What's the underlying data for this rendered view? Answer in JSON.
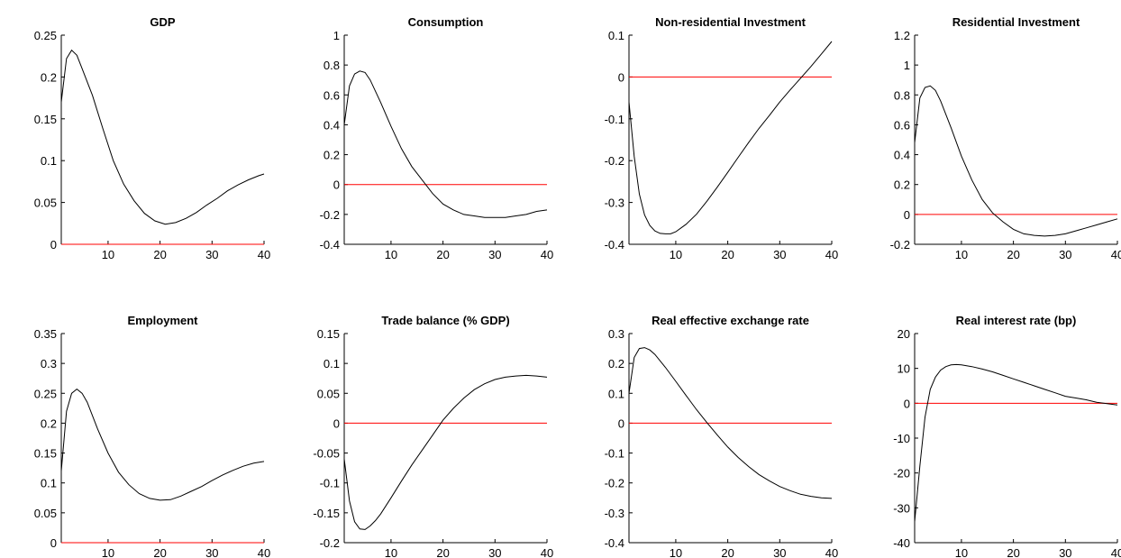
{
  "chart_data": [
    {
      "type": "line",
      "title": "GDP",
      "xlim": [
        1,
        40
      ],
      "ylim": [
        0,
        0.25
      ],
      "yticks": [
        0,
        0.05,
        0.1,
        0.15,
        0.2,
        0.25
      ],
      "ytick_labels": [
        "0",
        "0.05",
        "0.1",
        "0.15",
        "0.2",
        "0.25"
      ],
      "xticks": [
        10,
        20,
        30,
        40
      ],
      "xtick_labels": [
        "10",
        "20",
        "30",
        "40"
      ],
      "reference_line": 0,
      "line_color": "#000000",
      "reference_color": "#ff0000",
      "series": [
        {
          "x": [
            1,
            2,
            3,
            4,
            5,
            7,
            9,
            11,
            13,
            15,
            17,
            19,
            21,
            23,
            25,
            27,
            29,
            31,
            33,
            35,
            37,
            39,
            40
          ],
          "values": [
            0.17,
            0.222,
            0.232,
            0.226,
            0.21,
            0.178,
            0.138,
            0.1,
            0.072,
            0.052,
            0.037,
            0.028,
            0.024,
            0.026,
            0.031,
            0.038,
            0.047,
            0.055,
            0.064,
            0.071,
            0.077,
            0.082,
            0.084
          ]
        }
      ]
    },
    {
      "type": "line",
      "title": "Consumption",
      "xlim": [
        1,
        40
      ],
      "ylim": [
        -0.4,
        1
      ],
      "yticks": [
        -0.4,
        -0.2,
        0,
        0.2,
        0.4,
        0.6,
        0.8,
        1
      ],
      "ytick_labels": [
        "-0.4",
        "-0.2",
        "0",
        "0.2",
        "0.4",
        "0.6",
        "0.8",
        "1"
      ],
      "xticks": [
        10,
        20,
        30,
        40
      ],
      "xtick_labels": [
        "10",
        "20",
        "30",
        "40"
      ],
      "reference_line": 0,
      "line_color": "#000000",
      "reference_color": "#ff0000",
      "series": [
        {
          "x": [
            1,
            2,
            3,
            4,
            5,
            6,
            8,
            10,
            12,
            14,
            16,
            18,
            20,
            22,
            24,
            26,
            28,
            30,
            32,
            34,
            36,
            38,
            40
          ],
          "values": [
            0.4,
            0.66,
            0.74,
            0.76,
            0.75,
            0.7,
            0.55,
            0.39,
            0.24,
            0.12,
            0.03,
            -0.06,
            -0.13,
            -0.17,
            -0.2,
            -0.21,
            -0.22,
            -0.22,
            -0.22,
            -0.21,
            -0.2,
            -0.18,
            -0.17
          ]
        }
      ]
    },
    {
      "type": "line",
      "title": "Non-residential Investment",
      "xlim": [
        1,
        40
      ],
      "ylim": [
        -0.4,
        0.1
      ],
      "yticks": [
        -0.4,
        -0.3,
        -0.2,
        -0.1,
        0,
        0.1
      ],
      "ytick_labels": [
        "-0.4",
        "-0.3",
        "-0.2",
        "-0.1",
        "0",
        "0.1"
      ],
      "xticks": [
        10,
        20,
        30,
        40
      ],
      "xtick_labels": [
        "10",
        "20",
        "30",
        "40"
      ],
      "reference_line": 0,
      "line_color": "#000000",
      "reference_color": "#ff0000",
      "series": [
        {
          "x": [
            1,
            2,
            3,
            4,
            5,
            6,
            7,
            8,
            9,
            10,
            12,
            14,
            16,
            18,
            20,
            22,
            24,
            26,
            28,
            30,
            32,
            34,
            36,
            38,
            40
          ],
          "values": [
            -0.06,
            -0.19,
            -0.28,
            -0.33,
            -0.355,
            -0.368,
            -0.374,
            -0.375,
            -0.375,
            -0.37,
            -0.352,
            -0.328,
            -0.297,
            -0.263,
            -0.228,
            -0.192,
            -0.157,
            -0.123,
            -0.092,
            -0.06,
            -0.031,
            -0.003,
            0.025,
            0.055,
            0.085
          ]
        }
      ]
    },
    {
      "type": "line",
      "title": "Residential Investment",
      "xlim": [
        1,
        40
      ],
      "ylim": [
        -0.2,
        1.2
      ],
      "yticks": [
        -0.2,
        0,
        0.2,
        0.4,
        0.6,
        0.8,
        1,
        1.2
      ],
      "ytick_labels": [
        "-0.2",
        "0",
        "0.2",
        "0.4",
        "0.6",
        "0.8",
        "1",
        "1.2"
      ],
      "xticks": [
        10,
        20,
        30,
        40
      ],
      "xtick_labels": [
        "10",
        "20",
        "30",
        "40"
      ],
      "reference_line": 0,
      "line_color": "#000000",
      "reference_color": "#ff0000",
      "series": [
        {
          "x": [
            1,
            2,
            3,
            4,
            5,
            6,
            8,
            10,
            12,
            14,
            16,
            18,
            20,
            22,
            24,
            26,
            28,
            30,
            32,
            34,
            36,
            38,
            40
          ],
          "values": [
            0.48,
            0.78,
            0.85,
            0.86,
            0.83,
            0.76,
            0.58,
            0.39,
            0.23,
            0.1,
            0.01,
            -0.05,
            -0.1,
            -0.13,
            -0.14,
            -0.145,
            -0.14,
            -0.13,
            -0.11,
            -0.09,
            -0.07,
            -0.05,
            -0.03
          ]
        }
      ]
    },
    {
      "type": "line",
      "title": "Employment",
      "xlim": [
        1,
        40
      ],
      "ylim": [
        0,
        0.35
      ],
      "yticks": [
        0,
        0.05,
        0.1,
        0.15,
        0.2,
        0.25,
        0.3,
        0.35
      ],
      "ytick_labels": [
        "0",
        "0.05",
        "0.1",
        "0.15",
        "0.2",
        "0.25",
        "0.3",
        "0.35"
      ],
      "xticks": [
        10,
        20,
        30,
        40
      ],
      "xtick_labels": [
        "10",
        "20",
        "30",
        "40"
      ],
      "reference_line": 0,
      "line_color": "#000000",
      "reference_color": "#ff0000",
      "series": [
        {
          "x": [
            1,
            2,
            3,
            4,
            5,
            6,
            8,
            10,
            12,
            14,
            16,
            18,
            20,
            22,
            24,
            26,
            28,
            30,
            32,
            34,
            36,
            38,
            40
          ],
          "values": [
            0.12,
            0.22,
            0.25,
            0.257,
            0.25,
            0.235,
            0.19,
            0.15,
            0.118,
            0.097,
            0.082,
            0.074,
            0.071,
            0.072,
            0.078,
            0.086,
            0.094,
            0.104,
            0.113,
            0.121,
            0.128,
            0.133,
            0.136
          ]
        }
      ]
    },
    {
      "type": "line",
      "title": "Trade balance (% GDP)",
      "xlim": [
        1,
        40
      ],
      "ylim": [
        -0.2,
        0.15
      ],
      "yticks": [
        -0.2,
        -0.15,
        -0.1,
        -0.05,
        0,
        0.05,
        0.1,
        0.15
      ],
      "ytick_labels": [
        "-0.2",
        "-0.15",
        "-0.1",
        "-0.05",
        "0",
        "0.05",
        "0.1",
        "0.15"
      ],
      "xticks": [
        10,
        20,
        30,
        40
      ],
      "xtick_labels": [
        "10",
        "20",
        "30",
        "40"
      ],
      "reference_line": 0,
      "line_color": "#000000",
      "reference_color": "#ff0000",
      "series": [
        {
          "x": [
            1,
            2,
            3,
            4,
            5,
            6,
            7,
            8,
            10,
            12,
            14,
            16,
            18,
            20,
            22,
            24,
            26,
            28,
            30,
            32,
            34,
            36,
            38,
            40
          ],
          "values": [
            -0.06,
            -0.13,
            -0.165,
            -0.177,
            -0.178,
            -0.172,
            -0.163,
            -0.152,
            -0.125,
            -0.097,
            -0.07,
            -0.045,
            -0.02,
            0.005,
            0.025,
            0.042,
            0.056,
            0.066,
            0.073,
            0.077,
            0.079,
            0.08,
            0.079,
            0.077
          ]
        }
      ]
    },
    {
      "type": "line",
      "title": "Real effective exchange rate",
      "xlim": [
        1,
        40
      ],
      "ylim": [
        -0.4,
        0.3
      ],
      "yticks": [
        -0.4,
        -0.3,
        -0.2,
        -0.1,
        0,
        0.1,
        0.2,
        0.3
      ],
      "ytick_labels": [
        "-0.4",
        "-0.3",
        "-0.2",
        "-0.1",
        "0",
        "0.1",
        "0.2",
        "0.3"
      ],
      "xticks": [
        10,
        20,
        30,
        40
      ],
      "xtick_labels": [
        "10",
        "20",
        "30",
        "40"
      ],
      "reference_line": 0,
      "line_color": "#000000",
      "reference_color": "#ff0000",
      "series": [
        {
          "x": [
            1,
            2,
            3,
            4,
            5,
            6,
            8,
            10,
            12,
            14,
            16,
            18,
            20,
            22,
            24,
            26,
            28,
            30,
            32,
            34,
            36,
            38,
            40
          ],
          "values": [
            0.1,
            0.22,
            0.25,
            0.253,
            0.245,
            0.23,
            0.187,
            0.14,
            0.092,
            0.045,
            0.002,
            -0.04,
            -0.08,
            -0.115,
            -0.145,
            -0.172,
            -0.193,
            -0.212,
            -0.226,
            -0.238,
            -0.245,
            -0.25,
            -0.252
          ]
        }
      ]
    },
    {
      "type": "line",
      "title": "Real interest rate (bp)",
      "xlim": [
        1,
        40
      ],
      "ylim": [
        -40,
        20
      ],
      "yticks": [
        -40,
        -30,
        -20,
        -10,
        0,
        10,
        20
      ],
      "ytick_labels": [
        "-40",
        "-30",
        "-20",
        "-10",
        "0",
        "10",
        "20"
      ],
      "xticks": [
        10,
        20,
        30,
        40
      ],
      "xtick_labels": [
        "10",
        "20",
        "30",
        "40"
      ],
      "reference_line": 0,
      "line_color": "#000000",
      "reference_color": "#ff0000",
      "series": [
        {
          "x": [
            1,
            2,
            3,
            4,
            5,
            6,
            7,
            8,
            9,
            10,
            12,
            14,
            16,
            18,
            20,
            22,
            24,
            26,
            28,
            30,
            32,
            34,
            36,
            38,
            40
          ],
          "values": [
            -34,
            -18,
            -4,
            4,
            7.5,
            9.5,
            10.5,
            11,
            11.1,
            11,
            10.5,
            9.8,
            9,
            8,
            7,
            6,
            5,
            4,
            3,
            2,
            1.5,
            1,
            0.3,
            -0.1,
            -0.5
          ]
        }
      ]
    }
  ]
}
